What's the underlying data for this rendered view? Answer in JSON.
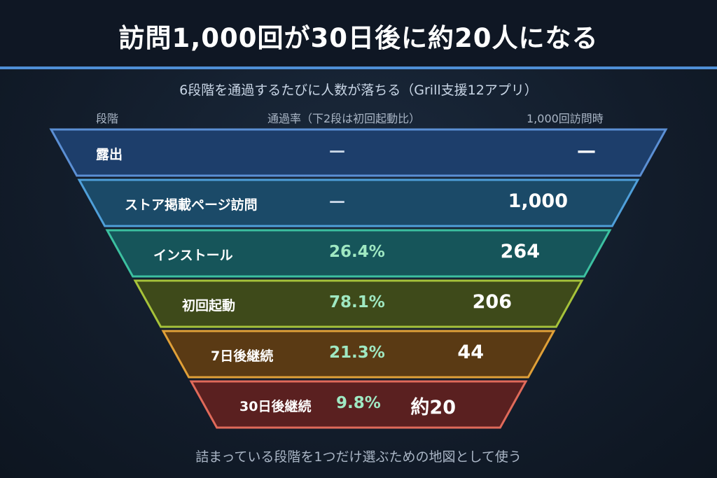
{
  "title": "訪問1,000回が30日後に約20人になる",
  "subtitle": "6段階を通過するたびに人数が落ちる（Grill支援12アプリ）",
  "columns": {
    "stage": "段階",
    "rate": "通過率（下2段は初回起動比）",
    "count": "1,000回訪問時"
  },
  "stages": [
    {
      "label": "露出",
      "rate": "—",
      "count": "—",
      "fill": "#1d3e6b",
      "stroke": "#5b8fd4"
    },
    {
      "label": "ストア掲載ページ訪問",
      "rate": "—",
      "count": "1,000",
      "fill": "#1b4a68",
      "stroke": "#4f9fd9"
    },
    {
      "label": "インストール",
      "rate": "26.4%",
      "count": "264",
      "fill": "#16555a",
      "stroke": "#3cc0a0"
    },
    {
      "label": "初回起動",
      "rate": "78.1%",
      "count": "206",
      "fill": "#3e4a1a",
      "stroke": "#a6c23a"
    },
    {
      "label": "7日後継続",
      "rate": "21.3%",
      "count": "44",
      "fill": "#5a3a14",
      "stroke": "#e0a038"
    },
    {
      "label": "30日後継続",
      "rate": "9.8%",
      "count": "約20",
      "fill": "#5a2020",
      "stroke": "#e06a5a"
    }
  ],
  "footer": "詰まっている段階を1つだけ選ぶための地図として使う"
}
